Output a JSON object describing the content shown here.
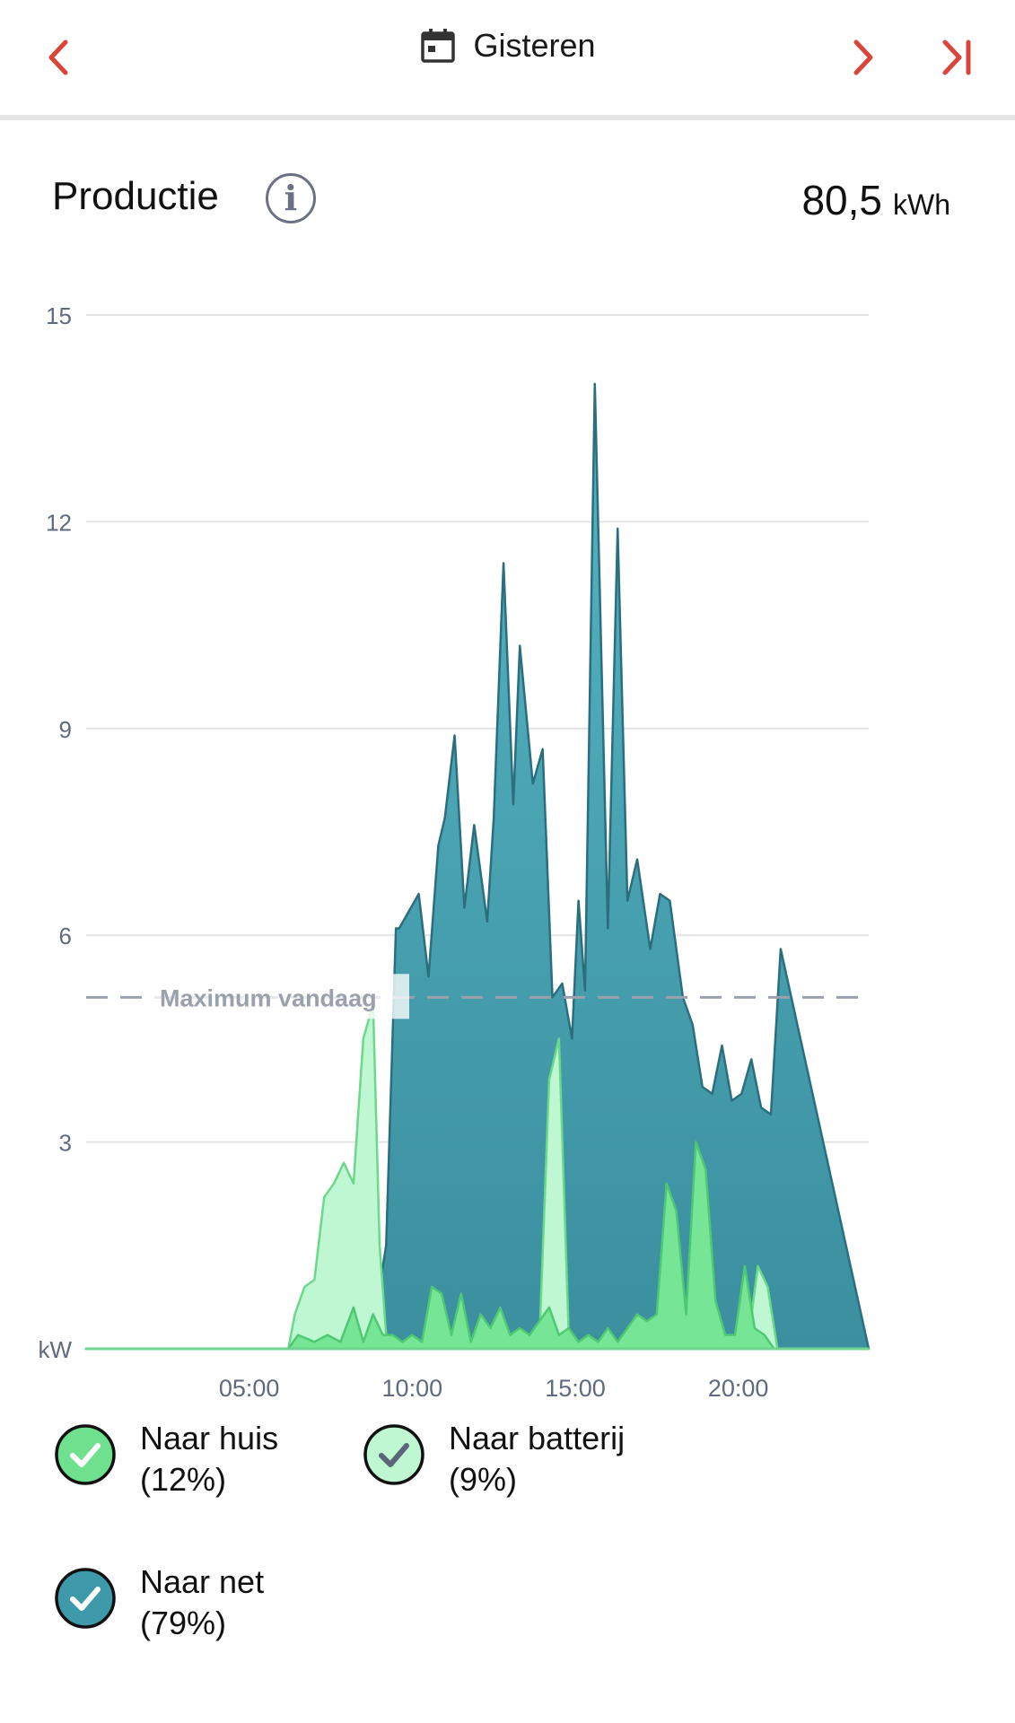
{
  "header": {
    "date_label": "Gisteren",
    "prev_icon": "chevron-left-icon",
    "next_icon": "chevron-right-icon",
    "last_icon": "skip-to-end-icon",
    "calendar_icon": "calendar-icon",
    "accent_color": "#d9453a"
  },
  "section": {
    "title": "Productie",
    "info_icon": "info-icon",
    "total_value": "80,5",
    "total_unit": "kWh"
  },
  "chart_data": {
    "type": "area",
    "title": "",
    "y_unit_label": "kW",
    "ylim": [
      0,
      15
    ],
    "y_ticks": [
      3,
      6,
      9,
      12,
      15
    ],
    "xlim": [
      0,
      24
    ],
    "x_ticks": [
      5,
      10,
      15,
      20
    ],
    "x_tick_labels": [
      "05:00",
      "10:00",
      "15:00",
      "20:00"
    ],
    "grid": true,
    "reference_line": {
      "label": "Maximum vandaag",
      "value": 5.1
    },
    "series": [
      {
        "name": "Naar net",
        "color": "#3e9aaa",
        "x": [
          0,
          6.2,
          6.7,
          7.3,
          7.8,
          8.2,
          8.7,
          9.2,
          9.5,
          9.6,
          10.2,
          10.5,
          10.8,
          11.0,
          11.3,
          11.6,
          11.9,
          12.3,
          12.5,
          12.8,
          13.1,
          13.3,
          13.7,
          14.0,
          14.3,
          14.6,
          14.9,
          15.1,
          15.3,
          15.6,
          16.0,
          16.3,
          16.6,
          16.9,
          17.3,
          17.6,
          17.9,
          18.3,
          18.6,
          18.9,
          19.2,
          19.5,
          19.8,
          20.1,
          20.4,
          20.7,
          21.0,
          21.3,
          24
        ],
        "y": [
          0,
          0,
          0,
          0,
          0,
          0,
          0,
          1.5,
          6.1,
          6.1,
          6.6,
          5.4,
          7.3,
          7.7,
          8.9,
          6.4,
          7.6,
          6.2,
          7.7,
          11.4,
          7.9,
          10.2,
          8.2,
          8.7,
          5.1,
          5.3,
          4.5,
          6.5,
          5.2,
          14.0,
          6.1,
          11.9,
          6.5,
          7.1,
          5.8,
          6.6,
          6.5,
          5.1,
          4.7,
          3.8,
          3.7,
          4.4,
          3.6,
          3.7,
          4.2,
          3.5,
          3.4,
          5.8,
          0
        ]
      },
      {
        "name": "Naar batterij",
        "color": "#bff7d3",
        "x": [
          0,
          6.2,
          6.4,
          6.7,
          7.0,
          7.3,
          7.6,
          7.9,
          8.2,
          8.5,
          8.8,
          9.0,
          9.2,
          9.5,
          13.6,
          13.9,
          14.2,
          14.5,
          14.8,
          15.0,
          20.0,
          20.3,
          20.6,
          20.9,
          21.2,
          24
        ],
        "y": [
          0,
          0,
          0.5,
          0.9,
          1.0,
          2.2,
          2.4,
          2.7,
          2.4,
          4.5,
          5.0,
          1.5,
          0.2,
          0,
          0,
          0.1,
          3.9,
          4.5,
          0.2,
          0,
          0,
          0.1,
          1.2,
          0.9,
          0,
          0
        ]
      },
      {
        "name": "Naar huis",
        "color": "#76e595",
        "x": [
          0,
          6.2,
          6.5,
          7.0,
          7.4,
          7.8,
          8.2,
          8.5,
          8.8,
          9.1,
          9.4,
          9.7,
          10.0,
          10.3,
          10.6,
          10.9,
          11.2,
          11.5,
          11.8,
          12.1,
          12.4,
          12.7,
          13.0,
          13.3,
          13.6,
          13.9,
          14.2,
          14.5,
          14.8,
          15.1,
          15.4,
          15.7,
          16.0,
          16.3,
          16.6,
          16.9,
          17.2,
          17.5,
          17.8,
          18.1,
          18.4,
          18.7,
          19.0,
          19.3,
          19.6,
          19.9,
          20.2,
          20.5,
          20.8,
          21.1,
          21.4,
          24
        ],
        "y": [
          0,
          0,
          0.2,
          0.1,
          0.2,
          0.1,
          0.6,
          0.1,
          0.5,
          0.2,
          0.2,
          0.1,
          0.2,
          0.1,
          0.9,
          0.8,
          0.2,
          0.8,
          0.1,
          0.5,
          0.3,
          0.6,
          0.2,
          0.3,
          0.2,
          0.4,
          0.6,
          0.2,
          0.3,
          0.1,
          0.2,
          0.1,
          0.3,
          0.1,
          0.3,
          0.5,
          0.4,
          0.5,
          2.4,
          2.0,
          0.5,
          3.0,
          2.6,
          0.7,
          0.2,
          0.2,
          1.2,
          0.3,
          0.2,
          0,
          0,
          0
        ]
      }
    ]
  },
  "legend": [
    {
      "label": "Naar huis",
      "percent": "(12%)",
      "color": "#6ee08e",
      "check_color": "#ffffff"
    },
    {
      "label": "Naar batterij",
      "percent": "(9%)",
      "color": "#bff7d3",
      "check_color": "#5b6478"
    },
    {
      "label": "Naar net",
      "percent": "(79%)",
      "color": "#3e9aaa",
      "check_color": "#ffffff"
    }
  ]
}
